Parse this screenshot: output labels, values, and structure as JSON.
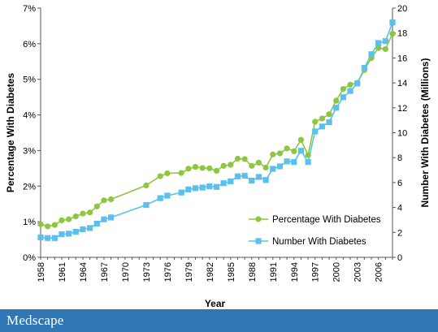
{
  "brand": "Medscape",
  "colors": {
    "percentage_series": "#8dc63f",
    "number_series": "#5bc0eb",
    "footer": "#2f77b4"
  },
  "chart_data": {
    "type": "line",
    "xlabel": "Year",
    "ylabel": "Percentage With Diabetes",
    "y2label": "Number With Diabetes (Millions)",
    "xlim": [
      1958,
      2008
    ],
    "xticks": [
      1958,
      1961,
      1964,
      1967,
      1970,
      1973,
      1976,
      1979,
      1982,
      1985,
      1988,
      1991,
      1994,
      1997,
      2000,
      2003,
      2006
    ],
    "ylim": [
      0,
      7
    ],
    "yticks": [
      "0%",
      "1%",
      "2%",
      "3%",
      "4%",
      "5%",
      "6%",
      "7%"
    ],
    "y2lim": [
      0,
      20
    ],
    "y2ticks": [
      0,
      2,
      4,
      6,
      8,
      10,
      12,
      14,
      16,
      18,
      20
    ],
    "grid": false,
    "legend": "bottom-right",
    "series": [
      {
        "name": "Percentage With Diabetes",
        "axis": "left",
        "marker": "circle",
        "color": "#8dc63f",
        "points": [
          [
            1958,
            0.93
          ],
          [
            1959,
            0.87
          ],
          [
            1960,
            0.91
          ],
          [
            1961,
            1.04
          ],
          [
            1962,
            1.07
          ],
          [
            1963,
            1.15
          ],
          [
            1964,
            1.23
          ],
          [
            1965,
            1.26
          ],
          [
            1966,
            1.43
          ],
          [
            1967,
            1.6
          ],
          [
            1968,
            1.63
          ],
          [
            1973,
            2.02
          ],
          [
            1975,
            2.28
          ],
          [
            1976,
            2.36
          ],
          [
            1978,
            2.37
          ],
          [
            1979,
            2.49
          ],
          [
            1980,
            2.54
          ],
          [
            1981,
            2.51
          ],
          [
            1982,
            2.5
          ],
          [
            1983,
            2.43
          ],
          [
            1984,
            2.57
          ],
          [
            1985,
            2.6
          ],
          [
            1986,
            2.77
          ],
          [
            1987,
            2.76
          ],
          [
            1988,
            2.57
          ],
          [
            1989,
            2.66
          ],
          [
            1990,
            2.52
          ],
          [
            1991,
            2.89
          ],
          [
            1992,
            2.92
          ],
          [
            1993,
            3.06
          ],
          [
            1994,
            2.98
          ],
          [
            1995,
            3.3
          ],
          [
            1996,
            2.87
          ],
          [
            1997,
            3.81
          ],
          [
            1998,
            3.9
          ],
          [
            1999,
            4.02
          ],
          [
            2000,
            4.4
          ],
          [
            2001,
            4.73
          ],
          [
            2002,
            4.85
          ],
          [
            2003,
            4.9
          ],
          [
            2004,
            5.26
          ],
          [
            2005,
            5.6
          ],
          [
            2006,
            5.88
          ],
          [
            2007,
            5.85
          ],
          [
            2008,
            6.28
          ]
        ]
      },
      {
        "name": "Number With Diabetes",
        "axis": "right",
        "marker": "square",
        "color": "#5bc0eb",
        "points": [
          [
            1958,
            1.6
          ],
          [
            1959,
            1.55
          ],
          [
            1960,
            1.55
          ],
          [
            1961,
            1.85
          ],
          [
            1962,
            1.9
          ],
          [
            1963,
            2.05
          ],
          [
            1964,
            2.25
          ],
          [
            1965,
            2.35
          ],
          [
            1966,
            2.7
          ],
          [
            1967,
            3.05
          ],
          [
            1968,
            3.2
          ],
          [
            1973,
            4.2
          ],
          [
            1975,
            4.75
          ],
          [
            1976,
            4.95
          ],
          [
            1978,
            5.2
          ],
          [
            1979,
            5.45
          ],
          [
            1980,
            5.55
          ],
          [
            1981,
            5.6
          ],
          [
            1982,
            5.7
          ],
          [
            1983,
            5.65
          ],
          [
            1984,
            5.95
          ],
          [
            1985,
            6.1
          ],
          [
            1986,
            6.5
          ],
          [
            1987,
            6.55
          ],
          [
            1988,
            6.15
          ],
          [
            1989,
            6.45
          ],
          [
            1990,
            6.2
          ],
          [
            1991,
            7.1
          ],
          [
            1992,
            7.3
          ],
          [
            1993,
            7.7
          ],
          [
            1994,
            7.65
          ],
          [
            1995,
            8.55
          ],
          [
            1996,
            7.65
          ],
          [
            1997,
            10.1
          ],
          [
            1998,
            10.5
          ],
          [
            1999,
            10.85
          ],
          [
            2000,
            12.0
          ],
          [
            2001,
            12.85
          ],
          [
            2002,
            13.35
          ],
          [
            2003,
            13.95
          ],
          [
            2004,
            15.2
          ],
          [
            2005,
            16.3
          ],
          [
            2006,
            17.2
          ],
          [
            2007,
            17.35
          ],
          [
            2008,
            18.85
          ]
        ]
      }
    ]
  }
}
